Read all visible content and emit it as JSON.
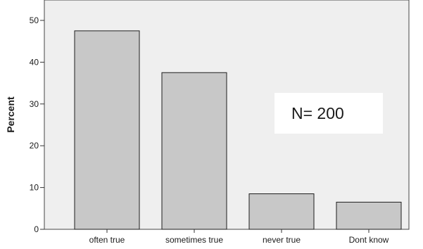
{
  "chart_data": {
    "type": "bar",
    "title": "",
    "xlabel": "",
    "ylabel": "Percent",
    "ylim": [
      0,
      50
    ],
    "yticks": [
      0,
      10,
      20,
      30,
      40,
      50
    ],
    "grid": false,
    "categories": [
      "often true",
      "sometimes true",
      "never true",
      "Dont know"
    ],
    "values": [
      47.5,
      37.5,
      8.5,
      6.5
    ],
    "bar_color": "#c8c8c8",
    "bar_edge_color": "#1e1e1e",
    "plot_background": "#efefef",
    "annotation": "N= 200"
  }
}
